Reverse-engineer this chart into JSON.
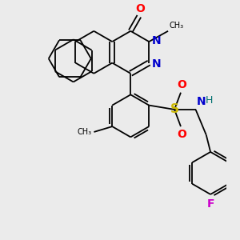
{
  "background_color": "#ebebeb",
  "atom_colors": {
    "O": "#ff0000",
    "N": "#0000cd",
    "S": "#ccb800",
    "H": "#007070",
    "F": "#cc00cc",
    "C": "#000000"
  }
}
